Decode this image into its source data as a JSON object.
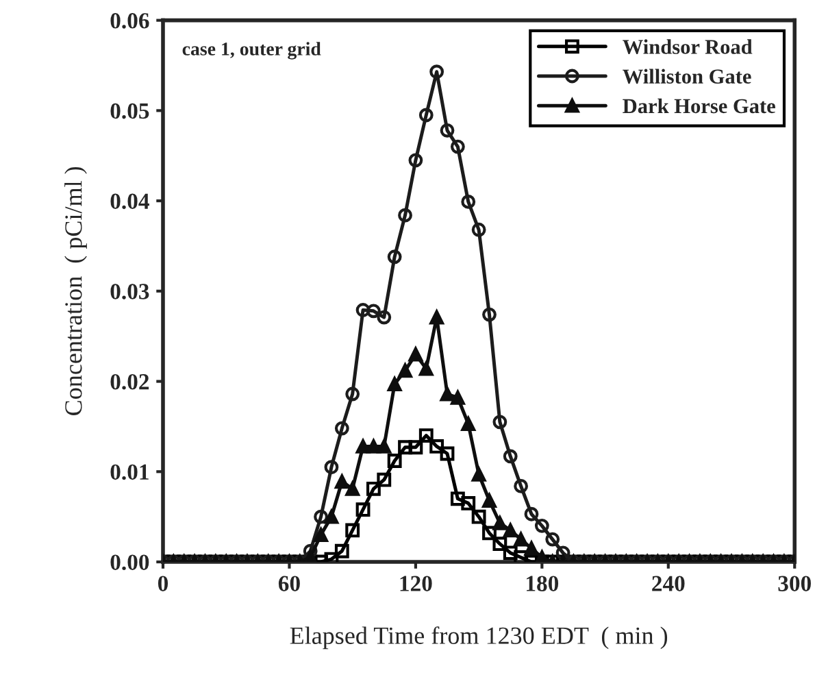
{
  "chart_data": {
    "type": "line",
    "xlabel": "Elapsed Time from 1230 EDT  ( min )",
    "ylabel": "Concentration  ( pCi/ml )",
    "annotations": [
      "case 1, outer grid"
    ],
    "x": [
      0,
      5,
      10,
      15,
      20,
      25,
      30,
      35,
      40,
      45,
      50,
      55,
      60,
      65,
      70,
      75,
      80,
      85,
      90,
      95,
      100,
      105,
      110,
      115,
      120,
      125,
      130,
      135,
      140,
      145,
      150,
      155,
      160,
      165,
      170,
      175,
      180,
      185,
      190,
      195,
      200,
      205,
      210,
      215,
      220,
      225,
      230,
      235,
      240,
      245,
      250,
      255,
      260,
      265,
      270,
      275,
      280,
      285,
      290,
      295,
      300
    ],
    "series": [
      {
        "name": "Windsor Road",
        "color": "#000000",
        "marker": "square",
        "values": [
          0,
          0,
          0,
          0,
          0,
          0,
          0,
          0,
          0,
          0,
          0,
          0,
          0,
          0,
          0,
          0,
          0.0003,
          0.0012,
          0.0035,
          0.0058,
          0.0081,
          0.0091,
          0.0112,
          0.0127,
          0.0127,
          0.014,
          0.0128,
          0.012,
          0.007,
          0.0065,
          0.005,
          0.0032,
          0.002,
          0.001,
          0.0005,
          0,
          0,
          0,
          0,
          0,
          0,
          0,
          0,
          0,
          0,
          0,
          0,
          0,
          0,
          0,
          0,
          0,
          0,
          0,
          0,
          0,
          0,
          0,
          0,
          0,
          0
        ]
      },
      {
        "name": "Williston Gate",
        "color": "#1c1c1c",
        "marker": "circle",
        "values": [
          0,
          0,
          0,
          0,
          0,
          0,
          0,
          0,
          0,
          0,
          0,
          0,
          0,
          0,
          0.0012,
          0.005,
          0.0105,
          0.0148,
          0.0186,
          0.0279,
          0.0278,
          0.0271,
          0.0338,
          0.0384,
          0.0445,
          0.0495,
          0.0543,
          0.0478,
          0.046,
          0.0399,
          0.0368,
          0.0274,
          0.0155,
          0.0117,
          0.0084,
          0.0053,
          0.004,
          0.0025,
          0.001,
          0,
          0,
          0,
          0,
          0,
          0,
          0,
          0,
          0,
          0,
          0,
          0,
          0,
          0,
          0,
          0,
          0,
          0,
          0,
          0,
          0,
          0
        ]
      },
      {
        "name": "Dark Horse Gate",
        "color": "#0e0e0e",
        "marker": "triangle",
        "values": [
          0,
          0,
          0,
          0,
          0,
          0,
          0,
          0,
          0,
          0,
          0,
          0,
          0,
          0,
          0.0005,
          0.003,
          0.005,
          0.0089,
          0.0081,
          0.0128,
          0.0128,
          0.0128,
          0.0197,
          0.0212,
          0.023,
          0.0214,
          0.0271,
          0.0186,
          0.0182,
          0.0153,
          0.0097,
          0.0068,
          0.0043,
          0.0035,
          0.0025,
          0.0015,
          0.0005,
          0,
          0,
          0,
          0,
          0,
          0,
          0,
          0,
          0,
          0,
          0,
          0,
          0,
          0,
          0,
          0,
          0,
          0,
          0,
          0,
          0,
          0,
          0,
          0
        ]
      }
    ],
    "xlim": [
      0,
      300
    ],
    "xticks": [
      0,
      60,
      120,
      180,
      240,
      300
    ],
    "ylim": [
      0,
      0.06
    ],
    "yticks": [
      {
        "value": 0,
        "label": "0.00"
      },
      {
        "value": 0.01,
        "label": "0.01"
      },
      {
        "value": 0.02,
        "label": "0.02"
      },
      {
        "value": 0.03,
        "label": "0.03"
      },
      {
        "value": 0.04,
        "label": "0.04"
      },
      {
        "value": 0.05,
        "label": "0.05"
      },
      {
        "value": 0.06,
        "label": "0.06"
      }
    ],
    "grid": false,
    "legend": "top right",
    "line_style": "solid"
  }
}
